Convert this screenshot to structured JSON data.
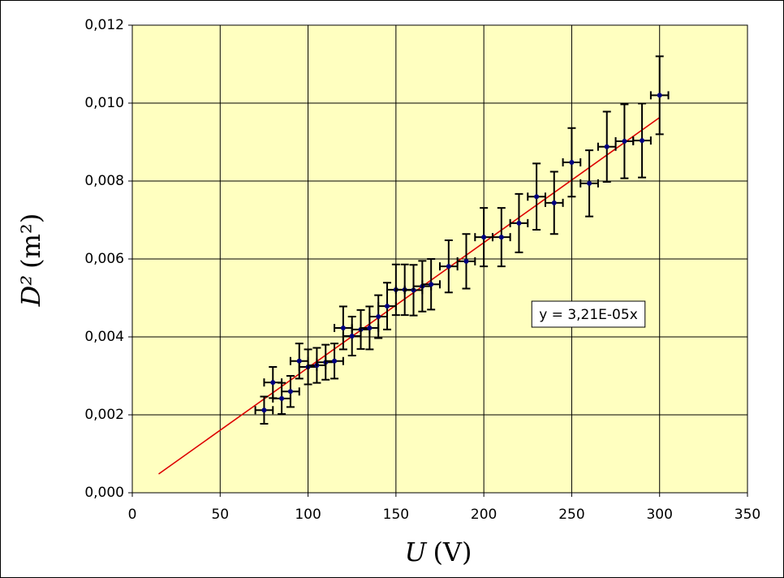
{
  "chart_data": {
    "type": "scatter",
    "x": [
      75,
      80,
      85,
      90,
      95,
      100,
      105,
      110,
      115,
      120,
      125,
      130,
      135,
      140,
      145,
      150,
      155,
      160,
      165,
      170,
      180,
      190,
      200,
      210,
      220,
      230,
      240,
      250,
      260,
      270,
      280,
      290,
      300
    ],
    "y": [
      0.00212,
      0.00283,
      0.00242,
      0.0026,
      0.00338,
      0.00323,
      0.00327,
      0.00335,
      0.00338,
      0.00423,
      0.00402,
      0.00419,
      0.00423,
      0.00452,
      0.00479,
      0.00521,
      0.00521,
      0.0052,
      0.0053,
      0.00535,
      0.00581,
      0.00594,
      0.00656,
      0.00656,
      0.00692,
      0.0076,
      0.00744,
      0.00848,
      0.00794,
      0.00888,
      0.00902,
      0.00904,
      0.0102
    ],
    "xerr": [
      5,
      5,
      5,
      5,
      5,
      5,
      5,
      5,
      5,
      5,
      5,
      5,
      5,
      5,
      5,
      5,
      5,
      5,
      5,
      5,
      5,
      5,
      5,
      5,
      5,
      5,
      5,
      5,
      5,
      5,
      5,
      5,
      5
    ],
    "yerr": [
      0.00035,
      0.0004,
      0.0004,
      0.0004,
      0.00045,
      0.00045,
      0.00045,
      0.00045,
      0.00045,
      0.00055,
      0.0005,
      0.0005,
      0.00055,
      0.00055,
      0.0006,
      0.00065,
      0.00065,
      0.00065,
      0.00065,
      0.00065,
      0.00067,
      0.0007,
      0.00075,
      0.00075,
      0.00075,
      0.00085,
      0.0008,
      0.00088,
      0.00085,
      0.0009,
      0.00095,
      0.00095,
      0.001
    ],
    "color": "#000080",
    "error_color": "#000000",
    "trendline": {
      "slope": 3.21e-05,
      "x": [
        15,
        300
      ],
      "label": "y = 3,21E-05x",
      "color": "#dd0000"
    },
    "x_label": {
      "symbol": "U",
      "unit": "(V)"
    },
    "y_label": {
      "symbol": "D²",
      "unit": "(m²)"
    },
    "xlim": [
      0,
      350
    ],
    "xticks": [
      0,
      50,
      100,
      150,
      200,
      250,
      300,
      350
    ],
    "ylim": [
      0,
      0.012
    ],
    "yticks": [
      {
        "value": 0,
        "label": "0,000"
      },
      {
        "value": 0.002,
        "label": "0,002"
      },
      {
        "value": 0.004,
        "label": "0,004"
      },
      {
        "value": 0.006,
        "label": "0,006"
      },
      {
        "value": 0.008,
        "label": "0,008"
      },
      {
        "value": 0.01,
        "label": "0,010"
      },
      {
        "value": 0.012,
        "label": "0,012"
      }
    ],
    "grid": true,
    "plot_background": "#ffffc0"
  }
}
